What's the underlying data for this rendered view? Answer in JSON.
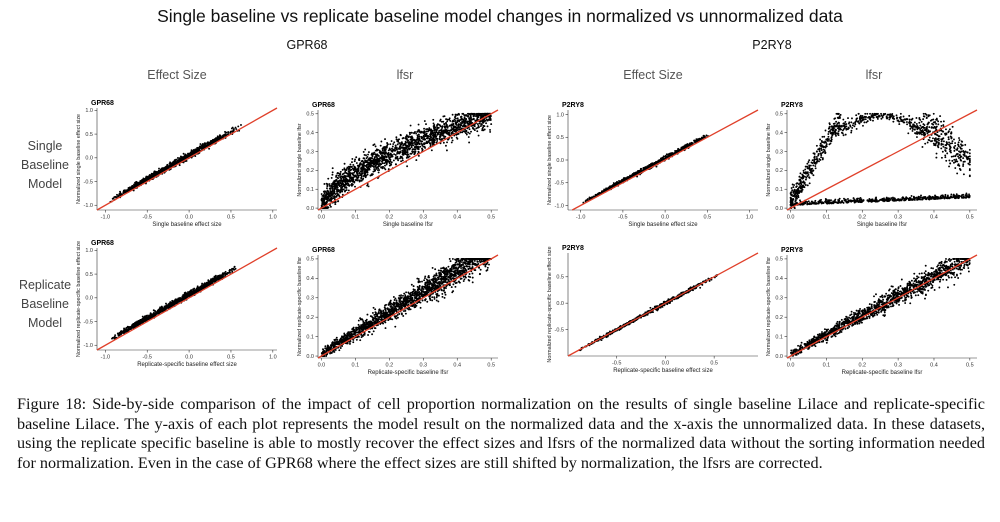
{
  "title": "Single baseline vs replicate baseline model changes in normalized vs unnormalized data",
  "groups": [
    "GPR68",
    "P2RY8"
  ],
  "column_headers": [
    "Effect Size",
    "lfsr",
    "Effect Size",
    "lfsr"
  ],
  "row_labels": [
    [
      "Single",
      "Baseline",
      "Model"
    ],
    [
      "Replicate",
      "Baseline",
      "Model"
    ]
  ],
  "colors": {
    "points": "#000000",
    "line": "#e0402a",
    "axis": "#333333"
  },
  "chart_data": [
    {
      "type": "scatter",
      "title": "GPR68",
      "xlabel": "Single baseline effect size",
      "ylabel": "Normalized single baseline effect size",
      "kind": "effect",
      "xlim": [
        -1.1,
        1.05
      ],
      "ylim": [
        -1.1,
        1.05
      ],
      "xticks": [
        -1.0,
        -0.5,
        0.0,
        0.5,
        1.0
      ],
      "xticklabels": [
        "-1.0",
        "-0.5",
        "0.0",
        "0.5",
        "1.0"
      ],
      "yticks": [
        -1.0,
        -0.5,
        0.0,
        0.5,
        1.0
      ],
      "yticklabels": [
        "-1.0",
        "-0.5",
        "0.0",
        "0.5",
        "1.0"
      ],
      "xrange": [
        -0.95,
        0.62
      ],
      "slope": 1.0,
      "offset": 0.05,
      "noise": 0.035,
      "n": 1100,
      "reference_line": "y = x"
    },
    {
      "type": "scatter",
      "title": "GPR68",
      "xlabel": "Single baseline lfsr",
      "ylabel": "Normalized single baseline lfsr",
      "kind": "lfsr_curve",
      "xlim": [
        -0.01,
        0.52
      ],
      "ylim": [
        -0.01,
        0.52
      ],
      "xticks": [
        0.0,
        0.1,
        0.2,
        0.3,
        0.4,
        0.5
      ],
      "xticklabels": [
        "0.0",
        "0.1",
        "0.2",
        "0.3",
        "0.4",
        "0.5"
      ],
      "yticks": [
        0.0,
        0.1,
        0.2,
        0.3,
        0.4,
        0.5
      ],
      "yticklabels": [
        "0.0",
        "0.1",
        "0.2",
        "0.3",
        "0.4",
        "0.5"
      ],
      "n": 1900,
      "reference_line": "y = x"
    },
    {
      "type": "scatter",
      "title": "P2RY8",
      "xlabel": "Single baseline effect size",
      "ylabel": "Normalized single baseline effect size",
      "kind": "effect",
      "xlim": [
        -1.15,
        1.1
      ],
      "ylim": [
        -1.1,
        1.1
      ],
      "xticks": [
        -1.0,
        -0.5,
        0.0,
        0.5,
        1.0
      ],
      "xticklabels": [
        "-1.0",
        "-0.5",
        "0.0",
        "0.5",
        "1.0"
      ],
      "yticks": [
        -1.0,
        -0.5,
        0.0,
        0.5,
        1.0
      ],
      "yticklabels": [
        "-1.0",
        "-0.5",
        "0.0",
        "0.5",
        "1.0"
      ],
      "xrange": [
        -1.0,
        0.55
      ],
      "slope": 1.0,
      "offset": 0.04,
      "noise": 0.025,
      "n": 700,
      "reference_line": "y = x"
    },
    {
      "type": "scatter",
      "title": "P2RY8",
      "xlabel": "Single baseline lfsr",
      "ylabel": "Normalized single baseline lfsr",
      "kind": "lfsr_loop",
      "xlim": [
        -0.01,
        0.52
      ],
      "ylim": [
        -0.01,
        0.52
      ],
      "xticks": [
        0.0,
        0.1,
        0.2,
        0.3,
        0.4,
        0.5
      ],
      "xticklabels": [
        "0.0",
        "0.1",
        "0.2",
        "0.3",
        "0.4",
        "0.5"
      ],
      "yticks": [
        0.0,
        0.1,
        0.2,
        0.3,
        0.4,
        0.5
      ],
      "yticklabels": [
        "0.0",
        "0.1",
        "0.2",
        "0.3",
        "0.4",
        "0.5"
      ],
      "n": 1500,
      "reference_line": "y = x"
    },
    {
      "type": "scatter",
      "title": "GPR68",
      "xlabel": "Replicate-specific baseline effect size",
      "ylabel": "Normalized replicate-specific baseline effect size",
      "kind": "effect",
      "xlim": [
        -1.1,
        1.05
      ],
      "ylim": [
        -1.1,
        1.05
      ],
      "xticks": [
        -1.0,
        -0.5,
        0.0,
        0.5,
        1.0
      ],
      "xticklabels": [
        "-1.0",
        "-0.5",
        "0.0",
        "0.5",
        "1.0"
      ],
      "yticks": [
        -1.0,
        -0.5,
        0.0,
        0.5,
        1.0
      ],
      "yticklabels": [
        "-1.0",
        "-0.5",
        "0.0",
        "0.5",
        "1.0"
      ],
      "xrange": [
        -0.95,
        0.6
      ],
      "slope": 1.0,
      "offset": 0.07,
      "noise": 0.035,
      "n": 1100,
      "reference_line": "y = x"
    },
    {
      "type": "scatter",
      "title": "GPR68",
      "xlabel": "Replicate-specific baseline lfsr",
      "ylabel": "Normalized replicate-specific baseline lfsr",
      "kind": "lfsr_linear",
      "xlim": [
        -0.01,
        0.52
      ],
      "ylim": [
        -0.01,
        0.52
      ],
      "xticks": [
        0.0,
        0.1,
        0.2,
        0.3,
        0.4,
        0.5
      ],
      "xticklabels": [
        "0.0",
        "0.1",
        "0.2",
        "0.3",
        "0.4",
        "0.5"
      ],
      "yticks": [
        0.0,
        0.1,
        0.2,
        0.3,
        0.4,
        0.5
      ],
      "yticklabels": [
        "0.0",
        "0.1",
        "0.2",
        "0.3",
        "0.4",
        "0.5"
      ],
      "n": 1800,
      "slope": 1.08,
      "offset": 0.01,
      "noise": 0.04,
      "reference_line": "y = x"
    },
    {
      "type": "scatter",
      "title": "P2RY8",
      "xlabel": "Replicate-specific baseline effect size",
      "ylabel": "Normalized replicate-specific baseline effect size",
      "kind": "effect",
      "xlim": [
        -1.0,
        0.95
      ],
      "ylim": [
        -1.0,
        0.95
      ],
      "xticks": [
        -0.5,
        0.0,
        0.5
      ],
      "xticklabels": [
        "-0.5",
        "0.0",
        "0.5"
      ],
      "yticks": [
        -0.5,
        0.0,
        0.5
      ],
      "yticklabels": [
        "-0.5",
        "0.0",
        "0.5"
      ],
      "xrange": [
        -0.9,
        0.55
      ],
      "slope": 1.0,
      "offset": 0.0,
      "noise": 0.018,
      "n": 650,
      "reference_line": "y = x"
    },
    {
      "type": "scatter",
      "title": "P2RY8",
      "xlabel": "Replicate-specific baseline lfsr",
      "ylabel": "Normalized replicate-specific baseline lfsr",
      "kind": "lfsr_linear",
      "xlim": [
        -0.01,
        0.52
      ],
      "ylim": [
        -0.01,
        0.52
      ],
      "xticks": [
        0.0,
        0.1,
        0.2,
        0.3,
        0.4,
        0.5
      ],
      "xticklabels": [
        "0.0",
        "0.1",
        "0.2",
        "0.3",
        "0.4",
        "0.5"
      ],
      "yticks": [
        0.0,
        0.1,
        0.2,
        0.3,
        0.4,
        0.5
      ],
      "yticklabels": [
        "0.0",
        "0.1",
        "0.2",
        "0.3",
        "0.4",
        "0.5"
      ],
      "n": 1400,
      "slope": 1.0,
      "offset": 0.01,
      "noise": 0.03,
      "reference_line": "y = x"
    }
  ],
  "caption": "Figure 18: Side-by-side comparison of the impact of cell proportion normalization on the results of single baseline Lilace and replicate-specific baseline Lilace. The y-axis of each plot represents the model result on the normalized data and the x-axis the unnormalized data. In these datasets, using the replicate specific baseline is able to mostly recover the effect sizes and lfsrs of the normalized data without the sorting information needed for normalization. Even in the case of GPR68 where the effect sizes are still shifted by normalization, the lfsrs are corrected."
}
